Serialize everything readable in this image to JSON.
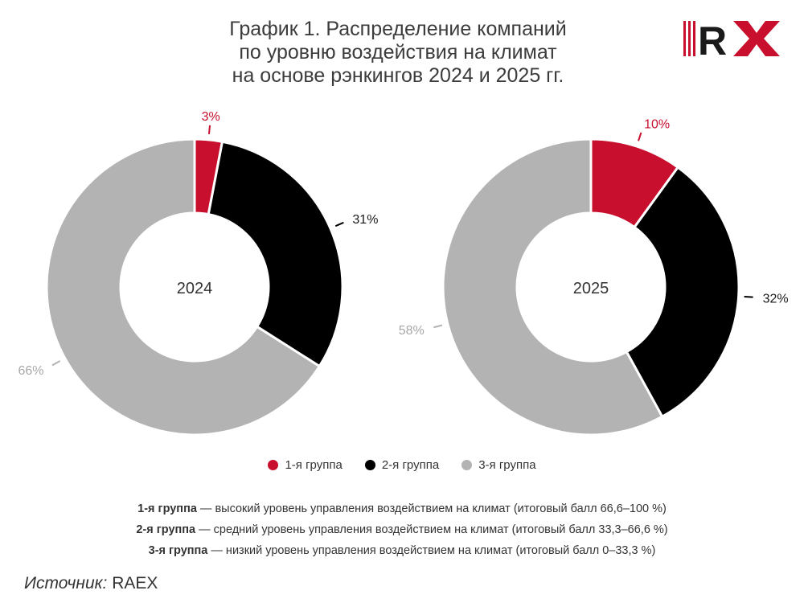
{
  "title": {
    "lines": [
      "График 1. Распределение компаний",
      "по уровню воздействия на климат",
      "на основе рэнкингов 2024 и 2025 гг."
    ]
  },
  "logo": {
    "text": "RX"
  },
  "chart_data": [
    {
      "type": "pie",
      "center_label": "2024",
      "slices": [
        {
          "name": "1-я группа",
          "value": 3,
          "label": "3%",
          "color": "#c8102e"
        },
        {
          "name": "2-я группа",
          "value": 31,
          "label": "31%",
          "color": "#000000"
        },
        {
          "name": "3-я группа",
          "value": 66,
          "label": "66%",
          "color": "#b3b3b3"
        }
      ],
      "legend": "bottom"
    },
    {
      "type": "pie",
      "center_label": "2025",
      "slices": [
        {
          "name": "1-я группа",
          "value": 10,
          "label": "10%",
          "color": "#c8102e"
        },
        {
          "name": "2-я группа",
          "value": 32,
          "label": "32%",
          "color": "#000000"
        },
        {
          "name": "3-я группа",
          "value": 58,
          "label": "58%",
          "color": "#b3b3b3"
        }
      ],
      "legend": "bottom"
    }
  ],
  "legend": [
    {
      "label": "1-я группа",
      "color": "#c8102e"
    },
    {
      "label": "2-я группа",
      "color": "#000000"
    },
    {
      "label": "3-я группа",
      "color": "#b3b3b3"
    }
  ],
  "notes": [
    {
      "term": "1-я группа",
      "text": " — высокий уровень управления воздействием на климат (итоговый балл 66,6–100 %)"
    },
    {
      "term": "2-я группа",
      "text": " — средний уровень управления воздействием на климат (итоговый балл 33,3–66,6 %)"
    },
    {
      "term": "3-я группа",
      "text": " — низкий уровень управления воздействием на климат (итоговый балл 0–33,3 %)"
    }
  ],
  "source": {
    "label": "Источник:",
    "value": " RAEX"
  }
}
